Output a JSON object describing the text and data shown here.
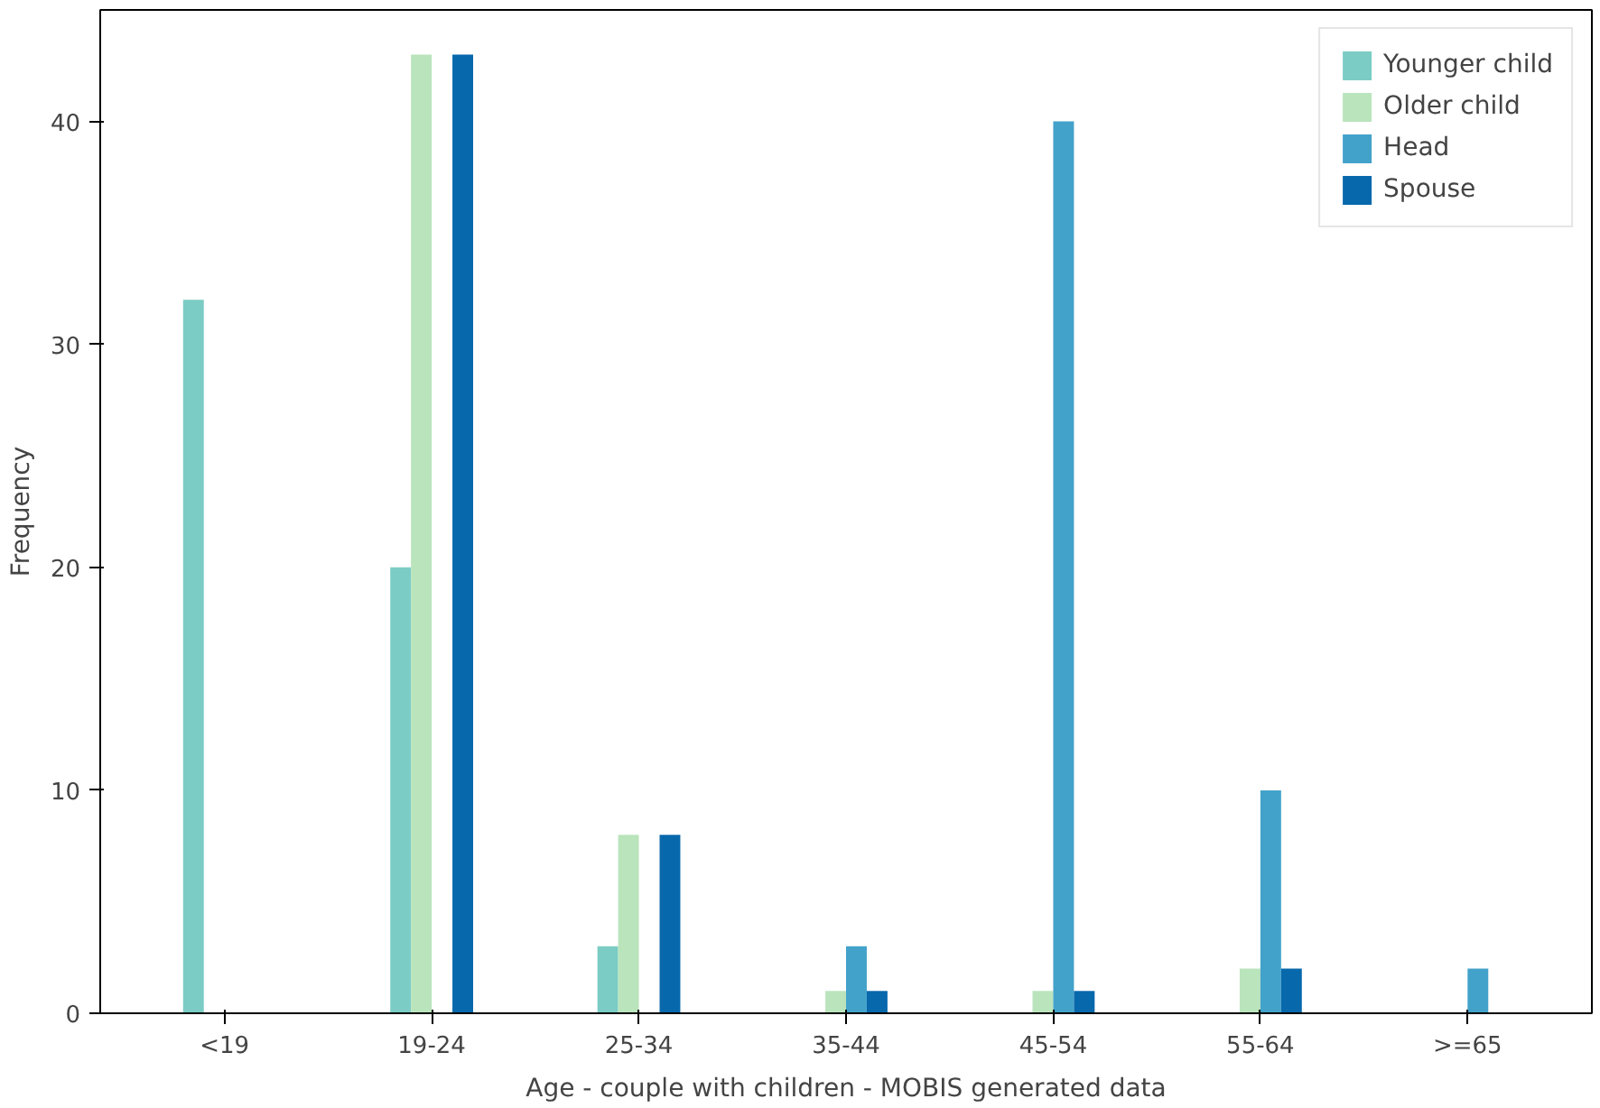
{
  "chart_data": {
    "type": "bar",
    "xlabel": "Age - couple with children - MOBIS generated data",
    "ylabel": "Frequency",
    "categories": [
      "<19",
      "19-24",
      "25-34",
      "35-44",
      "45-54",
      "55-64",
      ">=65"
    ],
    "series": [
      {
        "name": "Younger child",
        "color": "#7bccc4",
        "values": [
          32,
          20,
          3,
          0,
          0,
          0,
          0
        ]
      },
      {
        "name": "Older child",
        "color": "#bae4bc",
        "values": [
          0,
          43,
          8,
          1,
          1,
          2,
          0
        ]
      },
      {
        "name": "Head",
        "color": "#43a2ca",
        "values": [
          0,
          0,
          0,
          3,
          40,
          10,
          2
        ]
      },
      {
        "name": "Spouse",
        "color": "#0868ac",
        "values": [
          0,
          43,
          8,
          1,
          1,
          2,
          0
        ]
      }
    ],
    "ylim": [
      0,
      45
    ],
    "yticks": [
      0,
      10,
      20,
      30,
      40
    ],
    "grid": false,
    "legend": "top right"
  }
}
